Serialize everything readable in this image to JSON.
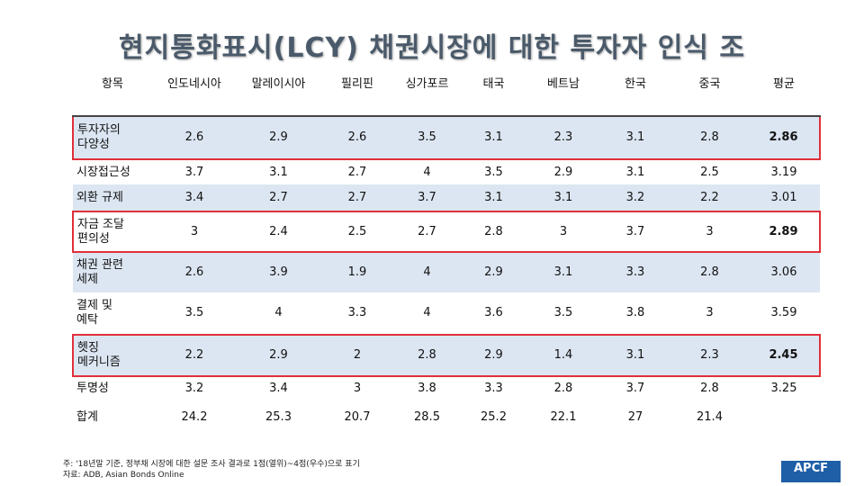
{
  "header": {
    "title": "현지통화표시(LCY) 채권시장에 대한 투자자 인식 조"
  },
  "table": {
    "columns": [
      "항목",
      "인도네시아",
      "말레이시아",
      "필리핀",
      "싱가포르",
      "태국",
      "베트남",
      "한국",
      "중국",
      "평균"
    ],
    "rows": [
      {
        "label": "투자자의\n다양성",
        "values": [
          2.6,
          2.9,
          2.6,
          3.5,
          3.1,
          2.3,
          3.1,
          2.8,
          2.86
        ],
        "highlight": true
      },
      {
        "label": "시장접근성",
        "values": [
          3.7,
          3.1,
          2.7,
          4,
          3.5,
          2.9,
          3.1,
          2.5,
          3.19
        ],
        "highlight": false
      },
      {
        "label": "외환 규제",
        "values": [
          3.4,
          2.7,
          2.7,
          3.7,
          3.1,
          3.1,
          3.2,
          2.2,
          3.01
        ],
        "highlight": false
      },
      {
        "label": "자금 조달\n편의성",
        "values": [
          3,
          2.4,
          2.5,
          2.7,
          2.8,
          3,
          3.7,
          3,
          2.89
        ],
        "highlight": true
      },
      {
        "label": "채권 관련\n세제",
        "values": [
          2.6,
          3.9,
          1.9,
          4,
          2.9,
          3.1,
          3.3,
          2.8,
          3.06
        ],
        "highlight": false
      },
      {
        "label": "결제 및\n예탁",
        "values": [
          3.5,
          4,
          3.3,
          4,
          3.6,
          3.5,
          3.8,
          3,
          3.59
        ],
        "highlight": false
      },
      {
        "label": "헷징\n메커니즘",
        "values": [
          2.2,
          2.9,
          2,
          2.8,
          2.9,
          1.4,
          3.1,
          2.3,
          2.45
        ],
        "highlight": true
      },
      {
        "label": "투명성",
        "values": [
          3.2,
          3.4,
          3,
          3.8,
          3.3,
          2.8,
          3.7,
          2.8,
          3.25
        ],
        "highlight": false
      },
      {
        "label": "합계",
        "values": [
          24.2,
          25.3,
          20.7,
          28.5,
          25.2,
          22.1,
          27,
          21.4
        ],
        "highlight": false
      }
    ]
  },
  "footer": {
    "note": "주: '18년말 기준, 정부채 시장에 대한 설문 조사 결과로 1점(열위)~4점(우수)으로 표기",
    "source": "자료: ADB, Asian Bonds Online",
    "logo": "APCF"
  }
}
